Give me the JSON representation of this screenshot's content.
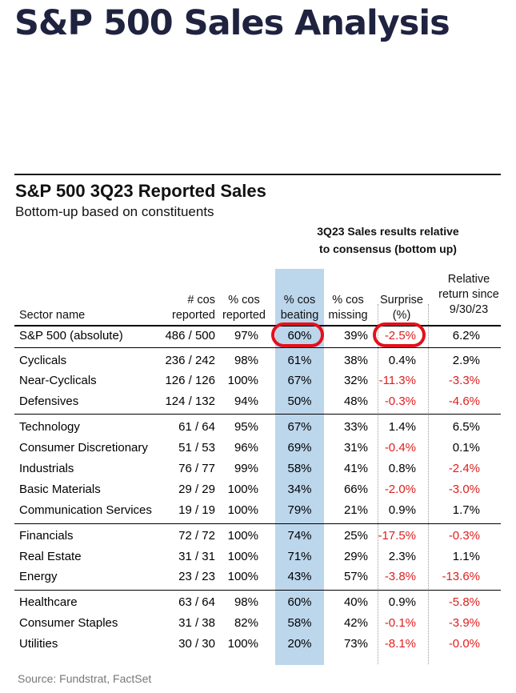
{
  "page": {
    "title": "S&P 500 Sales Analysis",
    "subtitle": "S&P 500 3Q23 Reported Sales",
    "caption": "Bottom-up based on constituents",
    "source": "Source: Fundstrat, FactSet"
  },
  "colors": {
    "title": "#1f2340",
    "beating_band": "#bcd6ec",
    "negative": "#e01e1e",
    "highlight_oval": "#e4101c"
  },
  "table": {
    "group_header": [
      "3Q23 Sales results relative",
      "to consensus (bottom up)"
    ],
    "headers": {
      "sector": "Sector name",
      "reported": [
        "# cos",
        "reported"
      ],
      "pct_reported": [
        "% cos",
        "reported"
      ],
      "pct_beating": [
        "% cos",
        "beating"
      ],
      "pct_missing": [
        "% cos",
        "missing"
      ],
      "surprise": [
        "Surprise",
        "(%)"
      ],
      "relative": [
        "Relative",
        "return since",
        "9/30/23"
      ]
    },
    "highlighted": [
      "S&P 500 (absolute) % cos beating",
      "S&P 500 (absolute) Surprise (%)"
    ],
    "rows": [
      {
        "name": "S&P 500 (absolute)",
        "reported": "486 / 500",
        "pct_reported": "97%",
        "pct_beating": "60%",
        "pct_missing": "39%",
        "surprise": "-2.5%",
        "relative": "6.2%"
      },
      {
        "name": "Cyclicals",
        "reported": "236 / 242",
        "pct_reported": "98%",
        "pct_beating": "61%",
        "pct_missing": "38%",
        "surprise": "0.4%",
        "relative": "2.9%"
      },
      {
        "name": "Near-Cyclicals",
        "reported": "126 / 126",
        "pct_reported": "100%",
        "pct_beating": "67%",
        "pct_missing": "32%",
        "surprise": "-11.3%",
        "relative": "-3.3%"
      },
      {
        "name": "Defensives",
        "reported": "124 / 132",
        "pct_reported": "94%",
        "pct_beating": "50%",
        "pct_missing": "48%",
        "surprise": "-0.3%",
        "relative": "-4.6%"
      },
      {
        "name": "Technology",
        "reported": "61 / 64",
        "pct_reported": "95%",
        "pct_beating": "67%",
        "pct_missing": "33%",
        "surprise": "1.4%",
        "relative": "6.5%"
      },
      {
        "name": "Consumer Discretionary",
        "reported": "51 / 53",
        "pct_reported": "96%",
        "pct_beating": "69%",
        "pct_missing": "31%",
        "surprise": "-0.4%",
        "relative": "0.1%"
      },
      {
        "name": "Industrials",
        "reported": "76 / 77",
        "pct_reported": "99%",
        "pct_beating": "58%",
        "pct_missing": "41%",
        "surprise": "0.8%",
        "relative": "-2.4%"
      },
      {
        "name": "Basic Materials",
        "reported": "29 / 29",
        "pct_reported": "100%",
        "pct_beating": "34%",
        "pct_missing": "66%",
        "surprise": "-2.0%",
        "relative": "-3.0%"
      },
      {
        "name": "Communication Services",
        "reported": "19 / 19",
        "pct_reported": "100%",
        "pct_beating": "79%",
        "pct_missing": "21%",
        "surprise": "0.9%",
        "relative": "1.7%"
      },
      {
        "name": "Financials",
        "reported": "72 / 72",
        "pct_reported": "100%",
        "pct_beating": "74%",
        "pct_missing": "25%",
        "surprise": "-17.5%",
        "relative": "-0.3%"
      },
      {
        "name": "Real Estate",
        "reported": "31 / 31",
        "pct_reported": "100%",
        "pct_beating": "71%",
        "pct_missing": "29%",
        "surprise": "2.3%",
        "relative": "1.1%"
      },
      {
        "name": "Energy",
        "reported": "23 / 23",
        "pct_reported": "100%",
        "pct_beating": "43%",
        "pct_missing": "57%",
        "surprise": "-3.8%",
        "relative": "-13.6%"
      },
      {
        "name": "Healthcare",
        "reported": "63 / 64",
        "pct_reported": "98%",
        "pct_beating": "60%",
        "pct_missing": "40%",
        "surprise": "0.9%",
        "relative": "-5.8%"
      },
      {
        "name": "Consumer Staples",
        "reported": "31 / 38",
        "pct_reported": "82%",
        "pct_beating": "58%",
        "pct_missing": "42%",
        "surprise": "-0.1%",
        "relative": "-3.9%"
      },
      {
        "name": "Utilities",
        "reported": "30 / 30",
        "pct_reported": "100%",
        "pct_beating": "20%",
        "pct_missing": "73%",
        "surprise": "-8.1%",
        "relative": "-0.0%"
      }
    ]
  }
}
